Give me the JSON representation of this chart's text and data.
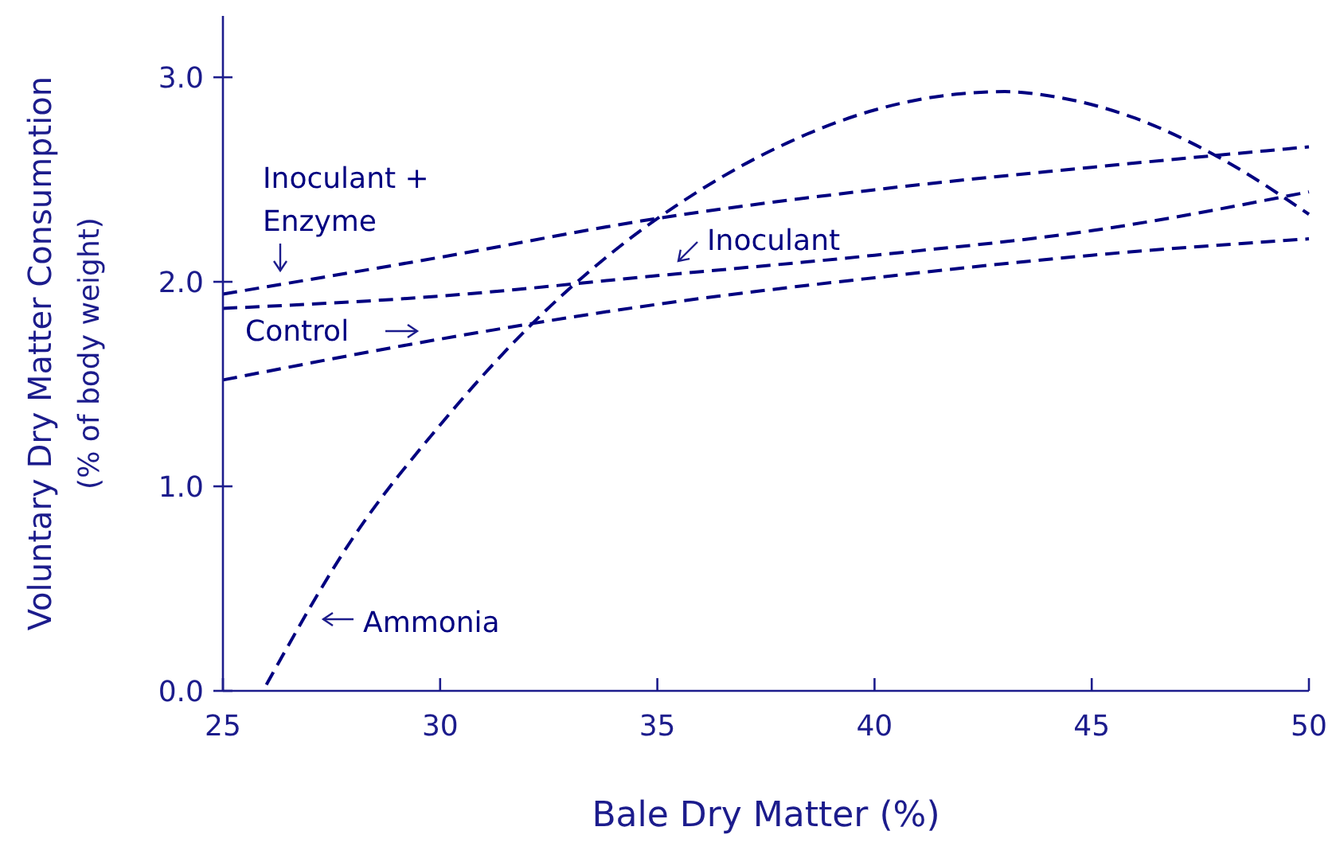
{
  "chart_data": {
    "type": "line",
    "xlabel": "Bale Dry Matter (%)",
    "ylabel": "Voluntary Dry Matter Consumption\n(% of body weight)",
    "xlim": [
      25,
      50
    ],
    "ylim": [
      0,
      3.3
    ],
    "xticks": [
      25,
      30,
      35,
      40,
      45,
      50
    ],
    "yticks": [
      {
        "value": 0,
        "label": "0.0"
      },
      {
        "value": 1,
        "label": "1.0"
      },
      {
        "value": 2,
        "label": "2.0"
      },
      {
        "value": 3,
        "label": "3.0"
      }
    ],
    "grid": false,
    "marker": "none",
    "line_style": "dashed",
    "series": [
      {
        "name": "Inoculant + Enzyme",
        "color": "#000080",
        "x": [
          25,
          30,
          35,
          40,
          45,
          50
        ],
        "values": [
          1.94,
          2.12,
          2.31,
          2.45,
          2.56,
          2.66
        ]
      },
      {
        "name": "Inoculant",
        "color": "#000080",
        "x": [
          25,
          30,
          35,
          40,
          45,
          50
        ],
        "values": [
          1.87,
          1.93,
          2.03,
          2.13,
          2.25,
          2.44
        ]
      },
      {
        "name": "Control",
        "color": "#000080",
        "x": [
          25,
          30,
          35,
          40,
          45,
          50
        ],
        "values": [
          1.52,
          1.72,
          1.89,
          2.02,
          2.13,
          2.21
        ]
      },
      {
        "name": "Ammonia",
        "color": "#000080",
        "x": [
          26,
          28,
          30,
          32,
          34,
          36,
          38,
          40,
          42,
          43,
          44,
          46,
          48,
          50
        ],
        "values": [
          0.03,
          0.75,
          1.3,
          1.77,
          2.15,
          2.45,
          2.68,
          2.84,
          2.92,
          2.93,
          2.91,
          2.8,
          2.6,
          2.33
        ]
      }
    ]
  }
}
